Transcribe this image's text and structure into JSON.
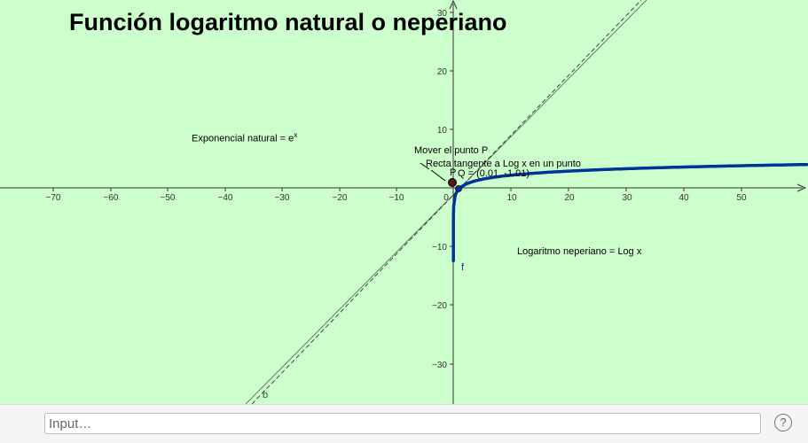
{
  "title": "Función logaritmo natural o neperiano",
  "labels": {
    "exponential": "Exponencial natural = e",
    "exponential_sup": "x",
    "logarithm": "Logaritmo neperiano = Log x",
    "move_point": "Mover el punto P",
    "tangent_line": "Recta tangente a Log x en un punto",
    "point_p": "P",
    "point_q": "Q = (0.01, -1.01)",
    "curve_f": "f",
    "line_b": "b"
  },
  "axes": {
    "x_ticks": [
      "−70",
      "−60",
      "−50",
      "−40",
      "−30",
      "−20",
      "−10",
      "0",
      "10",
      "20",
      "30",
      "40",
      "50"
    ],
    "y_ticks": [
      "30",
      "20",
      "10",
      "−10",
      "−20",
      "−30"
    ],
    "x_range": [
      -78,
      61
    ],
    "y_range": [
      -36.5,
      32
    ]
  },
  "colors": {
    "background": "#ccffcc",
    "curve": "#003399",
    "label_green": "#1a6b1a"
  },
  "input": {
    "placeholder": "Input…"
  },
  "help_icon": "help-icon",
  "help_label": "?"
}
